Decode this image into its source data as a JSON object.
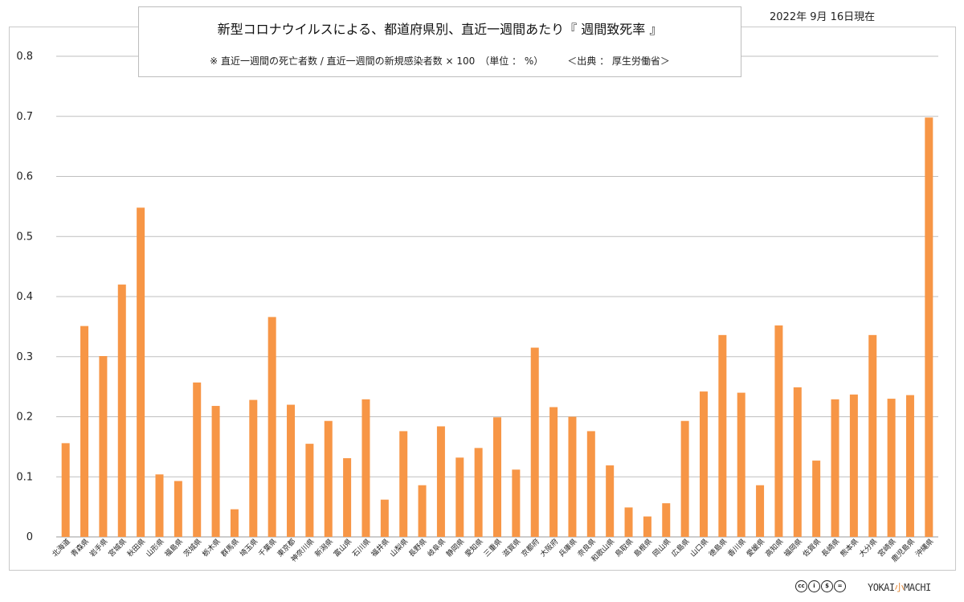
{
  "header": {
    "title": "新型コロナウイルスによる、都道府県別、直近一週間あたり『 週間致死率 』",
    "subtitle": "※ 直近一週間の死亡者数 / 直近一週間の新規感染者数 × 100　（単位 ： %）　　　＜出典 ： 厚生労働省＞",
    "date": "2022年 9月 16日現在"
  },
  "footer": {
    "logo_left": "YOKAI",
    "logo_mid": "小",
    "logo_right": "MACHI"
  },
  "colors": {
    "bar": "#f79646",
    "grid": "#bfbfbf",
    "axis_text": "#222222"
  },
  "chart_data": {
    "type": "bar",
    "title": "新型コロナウイルスによる、都道府県別、直近一週間あたり『 週間致死率 』",
    "xlabel": "",
    "ylabel": "",
    "ylim": [
      0,
      0.8
    ],
    "yticks": [
      "0",
      "0.1",
      "0.2",
      "0.3",
      "0.4",
      "0.5",
      "0.6",
      "0.7",
      "0.8"
    ],
    "grid": true,
    "legend": "none",
    "categories": [
      "北海道",
      "青森県",
      "岩手県",
      "宮城県",
      "秋田県",
      "山形県",
      "福島県",
      "茨城県",
      "栃木県",
      "群馬県",
      "埼玉県",
      "千葉県",
      "東京都",
      "神奈川県",
      "新潟県",
      "富山県",
      "石川県",
      "福井県",
      "山梨県",
      "長野県",
      "岐阜県",
      "静岡県",
      "愛知県",
      "三重県",
      "滋賀県",
      "京都府",
      "大阪府",
      "兵庫県",
      "奈良県",
      "和歌山県",
      "鳥取県",
      "島根県",
      "岡山県",
      "広島県",
      "山口県",
      "徳島県",
      "香川県",
      "愛媛県",
      "高知県",
      "福岡県",
      "佐賀県",
      "長崎県",
      "熊本県",
      "大分県",
      "宮崎県",
      "鹿児島県",
      "沖縄県"
    ],
    "values": [
      0.156,
      0.351,
      0.301,
      0.42,
      0.548,
      0.104,
      0.093,
      0.257,
      0.218,
      0.046,
      0.228,
      0.366,
      0.22,
      0.155,
      0.193,
      0.131,
      0.229,
      0.062,
      0.176,
      0.086,
      0.184,
      0.132,
      0.148,
      0.199,
      0.112,
      0.315,
      0.216,
      0.2,
      0.176,
      0.119,
      0.049,
      0.034,
      0.056,
      0.193,
      0.242,
      0.336,
      0.24,
      0.086,
      0.352,
      0.249,
      0.127,
      0.229,
      0.237,
      0.336,
      0.23,
      0.236,
      0.698
    ]
  }
}
